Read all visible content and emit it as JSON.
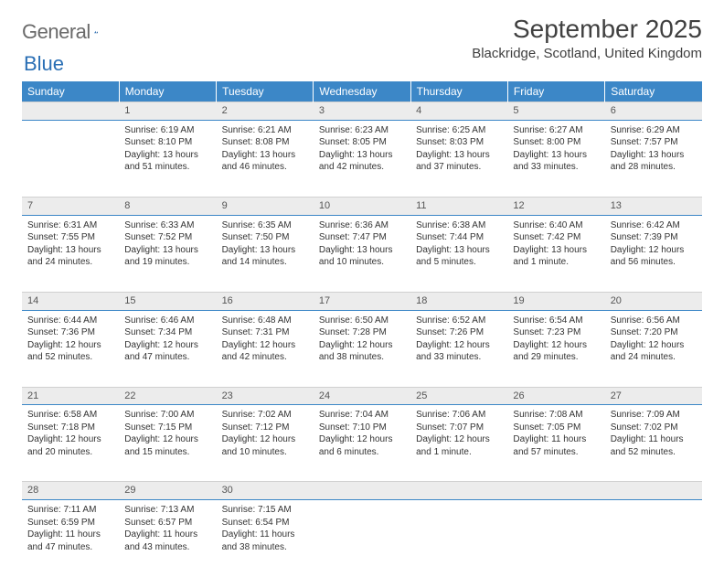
{
  "logo": {
    "text1": "General",
    "text2": "Blue"
  },
  "header": {
    "month_title": "September 2025",
    "location": "Blackridge, Scotland, United Kingdom"
  },
  "colors": {
    "header_bar": "#3c87c7",
    "daynum_bg": "#ececec",
    "text": "#333333",
    "logo_gray": "#6a6a6a",
    "logo_blue": "#2a6fb5"
  },
  "day_names": [
    "Sunday",
    "Monday",
    "Tuesday",
    "Wednesday",
    "Thursday",
    "Friday",
    "Saturday"
  ],
  "weeks": [
    {
      "nums": [
        "",
        "1",
        "2",
        "3",
        "4",
        "5",
        "6"
      ],
      "cells": [
        null,
        {
          "sunrise": "6:19 AM",
          "sunset": "8:10 PM",
          "daylight": "13 hours and 51 minutes."
        },
        {
          "sunrise": "6:21 AM",
          "sunset": "8:08 PM",
          "daylight": "13 hours and 46 minutes."
        },
        {
          "sunrise": "6:23 AM",
          "sunset": "8:05 PM",
          "daylight": "13 hours and 42 minutes."
        },
        {
          "sunrise": "6:25 AM",
          "sunset": "8:03 PM",
          "daylight": "13 hours and 37 minutes."
        },
        {
          "sunrise": "6:27 AM",
          "sunset": "8:00 PM",
          "daylight": "13 hours and 33 minutes."
        },
        {
          "sunrise": "6:29 AM",
          "sunset": "7:57 PM",
          "daylight": "13 hours and 28 minutes."
        }
      ]
    },
    {
      "nums": [
        "7",
        "8",
        "9",
        "10",
        "11",
        "12",
        "13"
      ],
      "cells": [
        {
          "sunrise": "6:31 AM",
          "sunset": "7:55 PM",
          "daylight": "13 hours and 24 minutes."
        },
        {
          "sunrise": "6:33 AM",
          "sunset": "7:52 PM",
          "daylight": "13 hours and 19 minutes."
        },
        {
          "sunrise": "6:35 AM",
          "sunset": "7:50 PM",
          "daylight": "13 hours and 14 minutes."
        },
        {
          "sunrise": "6:36 AM",
          "sunset": "7:47 PM",
          "daylight": "13 hours and 10 minutes."
        },
        {
          "sunrise": "6:38 AM",
          "sunset": "7:44 PM",
          "daylight": "13 hours and 5 minutes."
        },
        {
          "sunrise": "6:40 AM",
          "sunset": "7:42 PM",
          "daylight": "13 hours and 1 minute."
        },
        {
          "sunrise": "6:42 AM",
          "sunset": "7:39 PM",
          "daylight": "12 hours and 56 minutes."
        }
      ]
    },
    {
      "nums": [
        "14",
        "15",
        "16",
        "17",
        "18",
        "19",
        "20"
      ],
      "cells": [
        {
          "sunrise": "6:44 AM",
          "sunset": "7:36 PM",
          "daylight": "12 hours and 52 minutes."
        },
        {
          "sunrise": "6:46 AM",
          "sunset": "7:34 PM",
          "daylight": "12 hours and 47 minutes."
        },
        {
          "sunrise": "6:48 AM",
          "sunset": "7:31 PM",
          "daylight": "12 hours and 42 minutes."
        },
        {
          "sunrise": "6:50 AM",
          "sunset": "7:28 PM",
          "daylight": "12 hours and 38 minutes."
        },
        {
          "sunrise": "6:52 AM",
          "sunset": "7:26 PM",
          "daylight": "12 hours and 33 minutes."
        },
        {
          "sunrise": "6:54 AM",
          "sunset": "7:23 PM",
          "daylight": "12 hours and 29 minutes."
        },
        {
          "sunrise": "6:56 AM",
          "sunset": "7:20 PM",
          "daylight": "12 hours and 24 minutes."
        }
      ]
    },
    {
      "nums": [
        "21",
        "22",
        "23",
        "24",
        "25",
        "26",
        "27"
      ],
      "cells": [
        {
          "sunrise": "6:58 AM",
          "sunset": "7:18 PM",
          "daylight": "12 hours and 20 minutes."
        },
        {
          "sunrise": "7:00 AM",
          "sunset": "7:15 PM",
          "daylight": "12 hours and 15 minutes."
        },
        {
          "sunrise": "7:02 AM",
          "sunset": "7:12 PM",
          "daylight": "12 hours and 10 minutes."
        },
        {
          "sunrise": "7:04 AM",
          "sunset": "7:10 PM",
          "daylight": "12 hours and 6 minutes."
        },
        {
          "sunrise": "7:06 AM",
          "sunset": "7:07 PM",
          "daylight": "12 hours and 1 minute."
        },
        {
          "sunrise": "7:08 AM",
          "sunset": "7:05 PM",
          "daylight": "11 hours and 57 minutes."
        },
        {
          "sunrise": "7:09 AM",
          "sunset": "7:02 PM",
          "daylight": "11 hours and 52 minutes."
        }
      ]
    },
    {
      "nums": [
        "28",
        "29",
        "30",
        "",
        "",
        "",
        ""
      ],
      "cells": [
        {
          "sunrise": "7:11 AM",
          "sunset": "6:59 PM",
          "daylight": "11 hours and 47 minutes."
        },
        {
          "sunrise": "7:13 AM",
          "sunset": "6:57 PM",
          "daylight": "11 hours and 43 minutes."
        },
        {
          "sunrise": "7:15 AM",
          "sunset": "6:54 PM",
          "daylight": "11 hours and 38 minutes."
        },
        null,
        null,
        null,
        null
      ]
    }
  ],
  "labels": {
    "sunrise_prefix": "Sunrise: ",
    "sunset_prefix": "Sunset: ",
    "daylight_prefix": "Daylight: "
  }
}
